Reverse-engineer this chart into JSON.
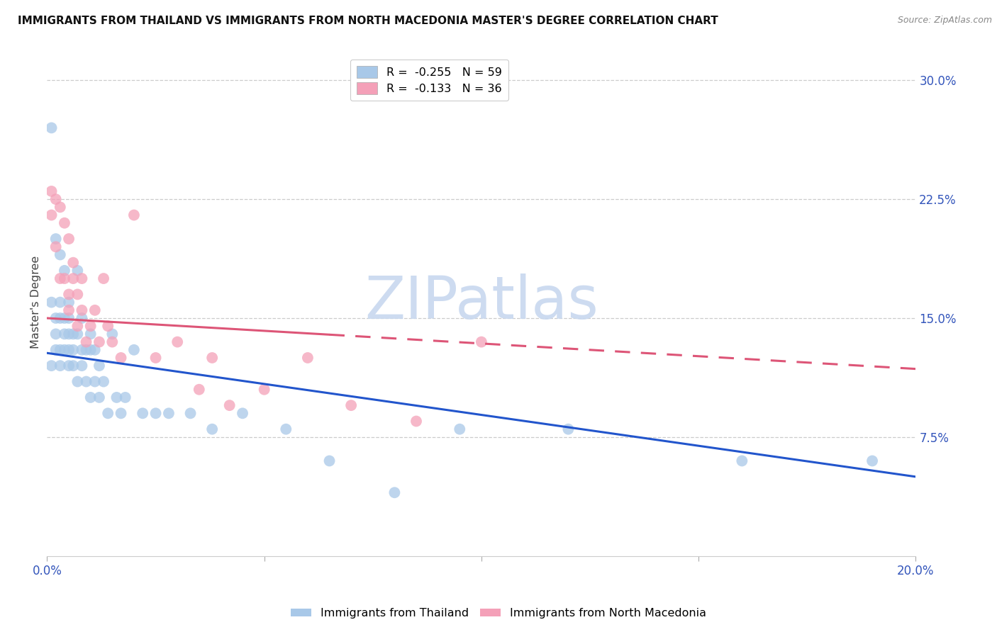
{
  "title": "IMMIGRANTS FROM THAILAND VS IMMIGRANTS FROM NORTH MACEDONIA MASTER'S DEGREE CORRELATION CHART",
  "source": "Source: ZipAtlas.com",
  "ylabel": "Master's Degree",
  "right_ytick_labels": [
    "7.5%",
    "15.0%",
    "22.5%",
    "30.0%"
  ],
  "right_ytick_values": [
    0.075,
    0.15,
    0.225,
    0.3
  ],
  "xlim": [
    0.0,
    0.2
  ],
  "ylim": [
    0.0,
    0.32
  ],
  "xtick_positions": [
    0.0,
    0.05,
    0.1,
    0.15,
    0.2
  ],
  "xticklabels_show": [
    "0.0%",
    "20.0%"
  ],
  "xticklabels_pos": [
    0.0,
    0.2
  ],
  "watermark": "ZIPatlas",
  "thailand": {
    "name": "Immigrants from Thailand",
    "color": "#a8c8e8",
    "R": -0.255,
    "N": 59,
    "x": [
      0.001,
      0.001,
      0.001,
      0.002,
      0.002,
      0.002,
      0.002,
      0.003,
      0.003,
      0.003,
      0.003,
      0.003,
      0.004,
      0.004,
      0.004,
      0.004,
      0.005,
      0.005,
      0.005,
      0.005,
      0.005,
      0.006,
      0.006,
      0.006,
      0.007,
      0.007,
      0.007,
      0.008,
      0.008,
      0.008,
      0.009,
      0.009,
      0.01,
      0.01,
      0.01,
      0.011,
      0.011,
      0.012,
      0.012,
      0.013,
      0.014,
      0.015,
      0.016,
      0.017,
      0.018,
      0.02,
      0.022,
      0.025,
      0.028,
      0.033,
      0.038,
      0.045,
      0.055,
      0.065,
      0.08,
      0.095,
      0.12,
      0.16,
      0.19
    ],
    "y": [
      0.27,
      0.16,
      0.12,
      0.2,
      0.15,
      0.14,
      0.13,
      0.19,
      0.16,
      0.15,
      0.13,
      0.12,
      0.18,
      0.15,
      0.14,
      0.13,
      0.16,
      0.15,
      0.14,
      0.13,
      0.12,
      0.14,
      0.13,
      0.12,
      0.18,
      0.14,
      0.11,
      0.15,
      0.13,
      0.12,
      0.13,
      0.11,
      0.14,
      0.13,
      0.1,
      0.13,
      0.11,
      0.12,
      0.1,
      0.11,
      0.09,
      0.14,
      0.1,
      0.09,
      0.1,
      0.13,
      0.09,
      0.09,
      0.09,
      0.09,
      0.08,
      0.09,
      0.08,
      0.06,
      0.04,
      0.08,
      0.08,
      0.06,
      0.06
    ]
  },
  "macedonia": {
    "name": "Immigrants from North Macedonia",
    "color": "#f4a0b8",
    "R": -0.133,
    "N": 36,
    "x": [
      0.001,
      0.001,
      0.002,
      0.002,
      0.003,
      0.003,
      0.004,
      0.004,
      0.005,
      0.005,
      0.005,
      0.006,
      0.006,
      0.007,
      0.007,
      0.008,
      0.008,
      0.009,
      0.01,
      0.011,
      0.012,
      0.013,
      0.014,
      0.015,
      0.017,
      0.02,
      0.025,
      0.03,
      0.035,
      0.038,
      0.042,
      0.05,
      0.06,
      0.07,
      0.085,
      0.1
    ],
    "y": [
      0.23,
      0.215,
      0.225,
      0.195,
      0.22,
      0.175,
      0.21,
      0.175,
      0.2,
      0.165,
      0.155,
      0.185,
      0.175,
      0.165,
      0.145,
      0.155,
      0.175,
      0.135,
      0.145,
      0.155,
      0.135,
      0.175,
      0.145,
      0.135,
      0.125,
      0.215,
      0.125,
      0.135,
      0.105,
      0.125,
      0.095,
      0.105,
      0.125,
      0.095,
      0.085,
      0.135
    ]
  },
  "trend_blue": {
    "x_start": 0.0,
    "x_end": 0.2,
    "y_start": 0.128,
    "y_end": 0.05
  },
  "trend_pink": {
    "x_start": 0.0,
    "x_end": 0.2,
    "y_start": 0.15,
    "y_end": 0.118
  },
  "legend_entries": [
    {
      "label": "R =  -0.255   N = 59",
      "color": "#a8c8e8"
    },
    {
      "label": "R =  -0.133   N = 36",
      "color": "#f4a0b8"
    }
  ],
  "grid_color": "#cccccc",
  "background_color": "#ffffff",
  "title_fontsize": 11,
  "tick_label_color": "#3355bb"
}
